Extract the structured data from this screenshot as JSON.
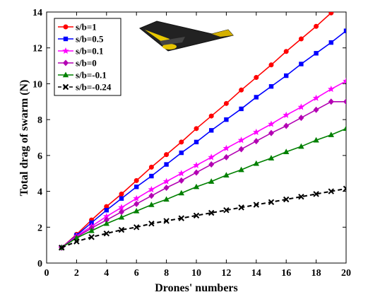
{
  "chart_data": {
    "type": "line",
    "title": "",
    "xlabel": "Drones' numbers",
    "ylabel": "Total drag of swarm (N)",
    "xlim": [
      0,
      20
    ],
    "ylim": [
      0,
      14
    ],
    "xticks": [
      "0",
      "2",
      "4",
      "6",
      "8",
      "10",
      "12",
      "14",
      "16",
      "18",
      "20"
    ],
    "yticks": [
      "0",
      "2",
      "4",
      "6",
      "8",
      "10",
      "12",
      "14"
    ],
    "grid": false,
    "legend_position": "top-left",
    "x": [
      1,
      2,
      3,
      4,
      5,
      6,
      7,
      8,
      9,
      10,
      11,
      12,
      13,
      14,
      15,
      16,
      17,
      18,
      19,
      20
    ],
    "series": [
      {
        "name": "s/b=1",
        "color": "#ff0000",
        "marker": "circle",
        "dashed": false,
        "values": [
          0.86,
          1.6,
          2.4,
          3.15,
          3.85,
          4.6,
          5.35,
          6.05,
          6.75,
          7.5,
          8.2,
          8.9,
          9.65,
          10.35,
          11.05,
          11.8,
          12.5,
          13.2,
          13.95,
          14.65
        ]
      },
      {
        "name": "s/b=0.5",
        "color": "#0000ff",
        "marker": "square",
        "dashed": false,
        "values": [
          0.86,
          1.55,
          2.25,
          2.95,
          3.6,
          4.25,
          4.85,
          5.5,
          6.15,
          6.75,
          7.4,
          8.0,
          8.6,
          9.25,
          9.85,
          10.45,
          11.1,
          11.7,
          12.3,
          12.95
        ]
      },
      {
        "name": "s/b=0.1",
        "color": "#ff00ff",
        "marker": "star",
        "dashed": false,
        "values": [
          0.86,
          1.5,
          2.05,
          2.6,
          3.1,
          3.6,
          4.1,
          4.55,
          5.0,
          5.45,
          5.9,
          6.4,
          6.85,
          7.3,
          7.75,
          8.25,
          8.7,
          9.2,
          9.7,
          10.15
        ]
      },
      {
        "name": "s/b=0",
        "color": "#b300b3",
        "marker": "diamond",
        "dashed": false,
        "values": [
          0.86,
          1.45,
          1.95,
          2.4,
          2.85,
          3.3,
          3.75,
          4.2,
          4.6,
          5.05,
          5.5,
          5.9,
          6.35,
          6.8,
          7.25,
          7.65,
          8.1,
          8.55,
          9.0,
          9.0
        ]
      },
      {
        "name": "s/b=-0.1",
        "color": "#008000",
        "marker": "triangle",
        "dashed": false,
        "values": [
          0.86,
          1.4,
          1.8,
          2.2,
          2.55,
          2.9,
          3.25,
          3.55,
          3.9,
          4.25,
          4.55,
          4.9,
          5.2,
          5.55,
          5.85,
          6.2,
          6.5,
          6.85,
          7.15,
          7.5
        ]
      },
      {
        "name": "s/b=-0.24",
        "color": "#000000",
        "marker": "x",
        "dashed": true,
        "values": [
          0.86,
          1.2,
          1.45,
          1.65,
          1.85,
          2.0,
          2.2,
          2.35,
          2.5,
          2.65,
          2.8,
          2.95,
          3.1,
          3.25,
          3.4,
          3.55,
          3.7,
          3.85,
          4.0,
          4.15
        ]
      }
    ]
  }
}
